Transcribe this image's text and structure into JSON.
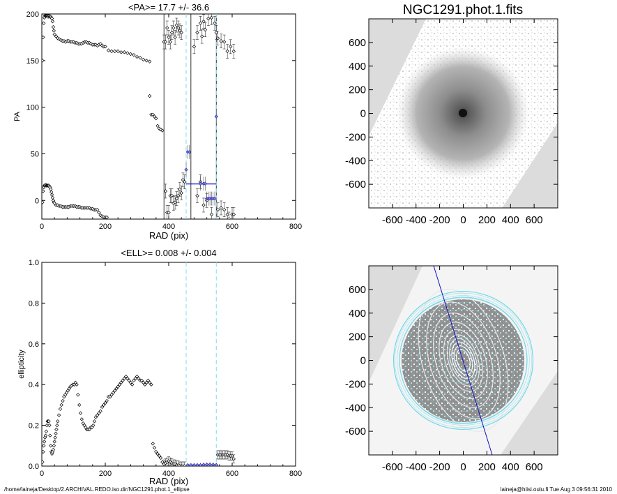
{
  "footer": {
    "left": "/home/laineja/Desktop/2.ARCHIVAL.REDO.iso.dir/NGC1291.phot.1_ellipse",
    "right": "laineja@hiisi.oulu.fi  Tue Aug  3 09:56:31 2010"
  },
  "colors": {
    "marker": "#000000",
    "selected": "#2a2aa8",
    "boundary": "#7fdcf0",
    "blueLine": "#1010c0",
    "contour": "#6fd8e8"
  },
  "chart_data": [
    {
      "type": "scatter",
      "title": "<PA>=  17.7 +/-  36.6",
      "xlabel": "RAD (pix)",
      "ylabel": "PA",
      "xlim": [
        0,
        800
      ],
      "ylim": [
        -20,
        200
      ],
      "xticks": [
        "0",
        "200",
        "400",
        "600",
        "800"
      ],
      "yticks": [
        "0",
        "50",
        "100",
        "150",
        "200"
      ],
      "vlines_solid": [
        385,
        470,
        550
      ],
      "vlines_dashed": [
        455,
        550
      ],
      "mean_segment": {
        "x": [
          455,
          550
        ],
        "y": 17.7
      },
      "series": [
        {
          "x": [
            2,
            4,
            6,
            8,
            10,
            12,
            14,
            16,
            18,
            20,
            22,
            24,
            26,
            28,
            30,
            32,
            34,
            36,
            38,
            40,
            45,
            50,
            55,
            60,
            65,
            70,
            75,
            80,
            85,
            90,
            95,
            100,
            105,
            110,
            115,
            120,
            125,
            130,
            135,
            140,
            145,
            150,
            155,
            160,
            165,
            170,
            175,
            180,
            185,
            190,
            195,
            200,
            210,
            220,
            230,
            240,
            250,
            260,
            270,
            280,
            290,
            300,
            310,
            320,
            330,
            340
          ],
          "y": [
            150,
            175,
            190,
            196,
            198,
            198,
            198,
            198,
            198,
            197,
            198,
            198,
            197,
            197,
            196,
            195,
            192,
            186,
            182,
            178,
            176,
            174,
            173,
            172,
            171,
            171,
            170,
            171,
            171,
            170,
            170,
            170,
            169,
            169,
            168,
            168,
            168,
            169,
            170,
            170,
            169,
            169,
            168,
            167,
            167,
            167,
            166,
            167,
            168,
            166,
            165,
            165,
            161,
            160,
            160,
            160,
            159,
            159,
            158,
            157,
            156,
            154,
            153,
            151,
            150,
            149
          ]
        },
        {
          "x": [
            2,
            4,
            6,
            8,
            10,
            12,
            14,
            16,
            18,
            20,
            22,
            24,
            26,
            28,
            30,
            32,
            34,
            36,
            38,
            40,
            45,
            50,
            55,
            60,
            65,
            70,
            75,
            80,
            85,
            90,
            95,
            100,
            105,
            110,
            115,
            120,
            125,
            130,
            135,
            140,
            145,
            150,
            155,
            160,
            165,
            170,
            175,
            180,
            185,
            190,
            195,
            200,
            205
          ],
          "y": [
            -2,
            10,
            14,
            16,
            16,
            17,
            16,
            16,
            16,
            16,
            16,
            15,
            14,
            12,
            9,
            6,
            3,
            0,
            -2,
            -3,
            -5,
            -5,
            -6,
            -6,
            -7,
            -7,
            -7,
            -7,
            -7,
            -6,
            -6,
            -6,
            -6,
            -7,
            -7,
            -7,
            -8,
            -8,
            -8,
            -8,
            -8,
            -8,
            -9,
            -9,
            -10,
            -10,
            -10,
            -13,
            -16,
            -17,
            -18,
            -18,
            -18
          ]
        },
        {
          "x": [
            340,
            345,
            350,
            355,
            360,
            365,
            370,
            375,
            380,
            385
          ],
          "y": [
            112,
            92,
            92,
            90,
            88,
            80,
            77,
            76,
            75,
            170
          ]
        },
        {
          "x": [
            390,
            395,
            400,
            405,
            410,
            415,
            420,
            425,
            430,
            435,
            440,
            445,
            450
          ],
          "y": [
            10,
            -13,
            -13,
            5,
            5,
            -3,
            -2,
            2,
            5,
            12,
            8,
            22,
            20
          ]
        },
        {
          "x": [
            390,
            395,
            400,
            405,
            410,
            415,
            420,
            425,
            430,
            435,
            440
          ],
          "y": [
            170,
            185,
            175,
            170,
            180,
            185,
            175,
            188,
            185,
            182,
            180
          ]
        },
        {
          "x": [
            480,
            490,
            500,
            505,
            510,
            515,
            525,
            535,
            545,
            550,
            555,
            565,
            575,
            585,
            595,
            605
          ],
          "y": [
            165,
            180,
            190,
            176,
            192,
            183,
            195,
            196,
            190,
            180,
            174,
            171,
            170,
            160,
            165,
            160
          ]
        },
        {
          "x": [
            490,
            500,
            510,
            520,
            535,
            555,
            565,
            575,
            585,
            590,
            600,
            605
          ],
          "y": [
            5,
            20,
            -5,
            0,
            -15,
            -10,
            -8,
            -10,
            -15,
            -20,
            -15,
            -15
          ]
        }
      ],
      "selected": {
        "x": [
          455,
          460,
          465,
          500,
          510,
          515,
          520,
          525,
          530,
          535,
          540,
          545,
          550
        ],
        "y": [
          33,
          52,
          52,
          18,
          18,
          18,
          2,
          2,
          2,
          2,
          2,
          2,
          90
        ]
      }
    },
    {
      "type": "scatter",
      "title": "<ELL>= 0.008 +/-  0.004",
      "xlabel": "RAD (pix)",
      "ylabel": "ellipticity",
      "xlim": [
        0,
        800
      ],
      "ylim": [
        0,
        1
      ],
      "xticks": [
        "0",
        "200",
        "400",
        "600",
        "800"
      ],
      "yticks": [
        "0.0",
        "0.2",
        "0.4",
        "0.6",
        "0.8",
        "1.0"
      ],
      "vlines_dashed": [
        455,
        550
      ],
      "series": [
        {
          "x": [
            2,
            4,
            6,
            8,
            10,
            12,
            14,
            16,
            18,
            20,
            22,
            24,
            26,
            28,
            30,
            32,
            34,
            36,
            38,
            40,
            42,
            44,
            46,
            48,
            50,
            54,
            58,
            62,
            66,
            70,
            74,
            78,
            82,
            86,
            90,
            94,
            98,
            102,
            106,
            110,
            114,
            118,
            122,
            126,
            130,
            134,
            138,
            142,
            146,
            150,
            154,
            158,
            162,
            166,
            170,
            175,
            180,
            185,
            190,
            195,
            200,
            205,
            210,
            215,
            220,
            225,
            230,
            235,
            240,
            245,
            250,
            255,
            260,
            265,
            270,
            275,
            280,
            285,
            290,
            295,
            300,
            305,
            310,
            315,
            320,
            325,
            330,
            335,
            340,
            345,
            350,
            355,
            360,
            365,
            370,
            375,
            380,
            385,
            390,
            395,
            400,
            405,
            410,
            415,
            420,
            425,
            430,
            435,
            440,
            445,
            450
          ],
          "y": [
            0.02,
            0.07,
            0.1,
            0.12,
            0.14,
            0.15,
            0.17,
            0.2,
            0.22,
            0.22,
            0.22,
            0.2,
            0.15,
            0.1,
            0.07,
            0.06,
            0.07,
            0.08,
            0.1,
            0.12,
            0.14,
            0.16,
            0.18,
            0.2,
            0.22,
            0.25,
            0.28,
            0.3,
            0.32,
            0.34,
            0.35,
            0.36,
            0.37,
            0.38,
            0.39,
            0.395,
            0.4,
            0.4,
            0.41,
            0.4,
            0.35,
            0.3,
            0.26,
            0.23,
            0.21,
            0.2,
            0.19,
            0.18,
            0.18,
            0.18,
            0.19,
            0.19,
            0.2,
            0.22,
            0.24,
            0.25,
            0.26,
            0.27,
            0.29,
            0.3,
            0.31,
            0.32,
            0.34,
            0.34,
            0.35,
            0.36,
            0.37,
            0.38,
            0.39,
            0.4,
            0.41,
            0.42,
            0.43,
            0.44,
            0.43,
            0.42,
            0.41,
            0.4,
            0.42,
            0.43,
            0.44,
            0.43,
            0.42,
            0.42,
            0.41,
            0.4,
            0.41,
            0.42,
            0.41,
            0.4,
            0.11,
            0.09,
            0.07,
            0.06,
            0.05,
            0.04,
            0.02,
            0.01,
            0.015,
            0.02,
            0.025,
            0.02,
            0.015,
            0.01,
            0.01,
            0.005,
            0.005,
            0.0,
            0.0,
            0.0,
            0.0
          ]
        },
        {
          "x": [
            555,
            560,
            565,
            570,
            575,
            580,
            585,
            590,
            595,
            600,
            605
          ],
          "y": [
            0.055,
            0.055,
            0.055,
            0.055,
            0.055,
            0.055,
            0.055,
            0.05,
            0.05,
            0.05,
            0.035
          ]
        }
      ],
      "selected": {
        "x": [
          460,
          470,
          480,
          490,
          500,
          510,
          520,
          530,
          540,
          550
        ],
        "y": [
          0.005,
          0.005,
          0.005,
          0.005,
          0.005,
          0.007,
          0.008,
          0.008,
          0.007,
          0.006
        ]
      }
    },
    {
      "type": "heatmap",
      "title": "NGC1291.phot.1.fits",
      "xlim": [
        -800,
        800
      ],
      "ylim": [
        -800,
        800
      ],
      "xticks": [
        "-600",
        "-400",
        "-200",
        "0",
        "200",
        "400",
        "600"
      ],
      "yticks": [
        "-600",
        "-400",
        "-200",
        "0",
        "200",
        "400",
        "600"
      ]
    },
    {
      "type": "heatmap",
      "title": "",
      "xlim": [
        -800,
        800
      ],
      "ylim": [
        -800,
        800
      ],
      "xticks": [
        "-600",
        "-400",
        "-200",
        "0",
        "200",
        "400",
        "600"
      ],
      "yticks": [
        "-600",
        "-400",
        "-200",
        "0",
        "200",
        "400",
        "600"
      ],
      "contour_radii": [
        80,
        120,
        160,
        200,
        260,
        320,
        380,
        440,
        500,
        540,
        560,
        580
      ],
      "boundary_radii": [
        540,
        590
      ],
      "major_axis_pa_deg": 17.7
    }
  ]
}
